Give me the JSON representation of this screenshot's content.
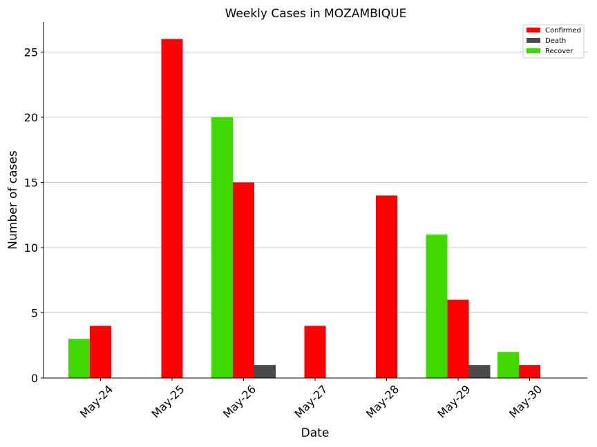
{
  "chart_data": {
    "type": "bar",
    "title": "Weekly Cases in MOZAMBIQUE",
    "xlabel": "Date",
    "ylabel": "Number of cases",
    "categories": [
      "May-24",
      "May-25",
      "May-26",
      "May-27",
      "May-28",
      "May-29",
      "May-30"
    ],
    "series": [
      {
        "name": "Recover",
        "color": "#3fd900",
        "values": [
          3,
          0,
          20,
          0,
          0,
          11,
          2
        ]
      },
      {
        "name": "Confirmed",
        "color": "#ff0000",
        "values": [
          4,
          26,
          15,
          4,
          14,
          6,
          1
        ]
      },
      {
        "name": "Death",
        "color": "#4a4a4a",
        "values": [
          0,
          0,
          1,
          0,
          0,
          1,
          0
        ]
      }
    ],
    "legend_order": [
      "Confirmed",
      "Death",
      "Recover"
    ],
    "legend_position": "top-right",
    "ylim": [
      0,
      27.3
    ],
    "yticks": [
      0,
      5,
      10,
      15,
      20,
      25
    ],
    "grid": "y"
  }
}
